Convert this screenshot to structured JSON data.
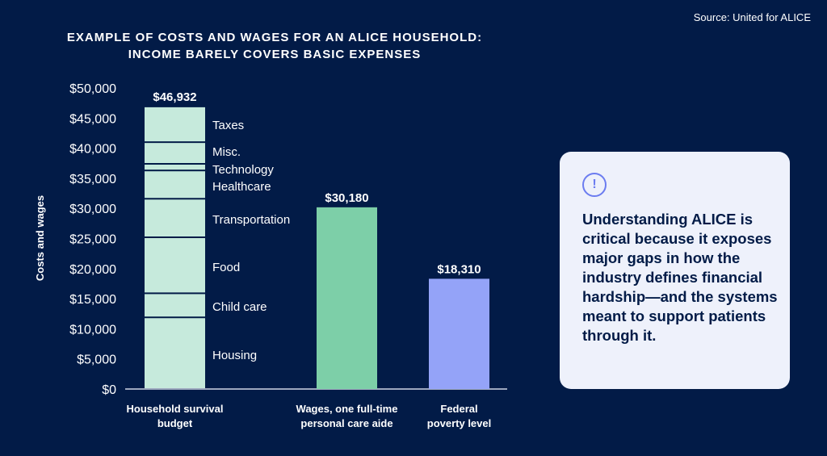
{
  "source": "Source: United for ALICE",
  "callout": {
    "icon": "exclamation-circle-icon",
    "text": "Understanding ALICE is critical because it exposes major gaps in how the industry defines financial hardship—and the systems meant to support patients through it."
  },
  "chart_data": {
    "type": "bar",
    "title": "EXAMPLE OF COSTS AND WAGES FOR AN ALICE HOUSEHOLD: INCOME BARELY COVERS BASIC EXPENSES",
    "ylabel": "Costs and wages",
    "ylim": [
      0,
      50000
    ],
    "yticks": [
      "$0",
      "$5,000",
      "$10,000",
      "$15,000",
      "$20,000",
      "$25,000",
      "$30,000",
      "$35,000",
      "$40,000",
      "$45,000",
      "$50,000"
    ],
    "grid": false,
    "categories": [
      {
        "label": [
          "Household survival",
          "budget"
        ],
        "total": 46932,
        "total_label": "$46,932",
        "color": "#c6eadc",
        "stack": [
          {
            "name": "Housing",
            "value": 11900
          },
          {
            "name": "Child care",
            "value": 4000
          },
          {
            "name": "Food",
            "value": 9300
          },
          {
            "name": "Transportation",
            "value": 6400
          },
          {
            "name": "Healthcare",
            "value": 4700
          },
          {
            "name": "Technology",
            "value": 1100
          },
          {
            "name": "Misc.",
            "value": 3600
          },
          {
            "name": "Taxes",
            "value": 5932
          }
        ]
      },
      {
        "label": [
          "Wages, one full-time",
          "personal care aide"
        ],
        "total": 30180,
        "total_label": "$30,180",
        "color": "#7dcfa8"
      },
      {
        "label": [
          "Federal",
          "poverty level"
        ],
        "total": 18310,
        "total_label": "$18,310",
        "color": "#94a3f8"
      }
    ]
  }
}
